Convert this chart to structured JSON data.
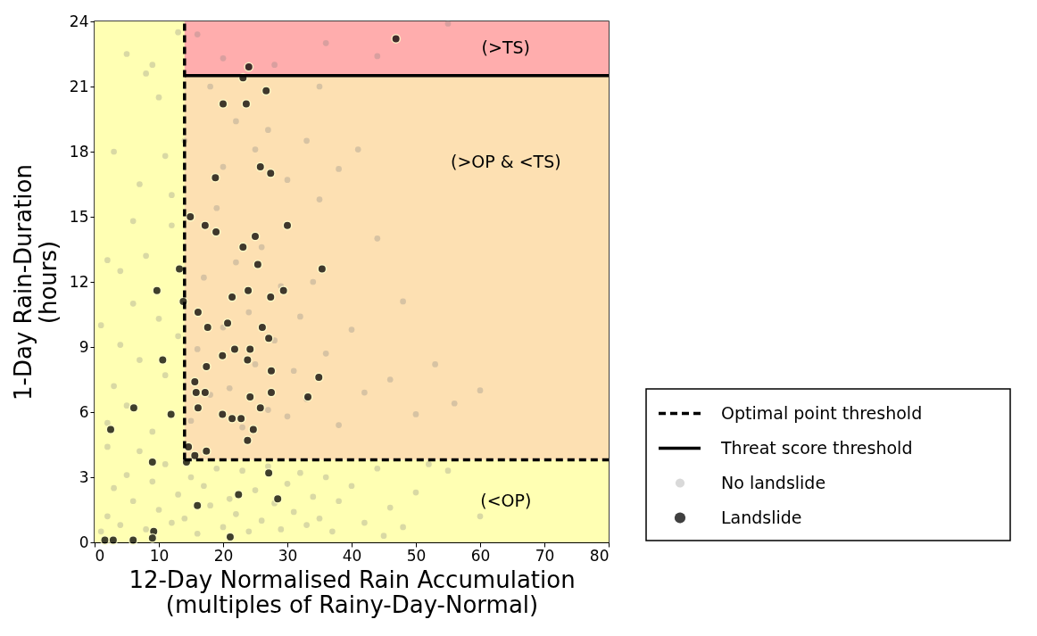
{
  "chart_data": {
    "type": "scatter",
    "xlabel": "12-Day Normalised Rain Accumulation\n(multiples of Rainy-Day-Normal)",
    "ylabel": "1-Day Rain-Duration\n(hours)",
    "xlim": [
      0,
      80
    ],
    "ylim": [
      0,
      24
    ],
    "xticks": [
      0,
      10,
      20,
      30,
      40,
      50,
      60,
      70,
      80
    ],
    "yticks": [
      0,
      3,
      6,
      9,
      12,
      15,
      18,
      21,
      24
    ],
    "grid": false,
    "legend": "right",
    "marker": "circle",
    "series": [
      {
        "name": "No landslide",
        "color": "#808080",
        "x": [
          1,
          2,
          3,
          4,
          5,
          6,
          7,
          8,
          9,
          10,
          11,
          12,
          13,
          14,
          15,
          16,
          17,
          18,
          19,
          20,
          21,
          22,
          23,
          24,
          25,
          26,
          27,
          28,
          29,
          30,
          31,
          32,
          33,
          34,
          35,
          36,
          37,
          38,
          40,
          42,
          44,
          46,
          48,
          50,
          55,
          60,
          52,
          45,
          2,
          3,
          4,
          5,
          6,
          7,
          8,
          9,
          10,
          11,
          12,
          13,
          4,
          2,
          15,
          16,
          17,
          18,
          19,
          20,
          21,
          22,
          23,
          24,
          25,
          26,
          27,
          28,
          29,
          30,
          31,
          32,
          33,
          34,
          36,
          38,
          40,
          42,
          44,
          46,
          48,
          50,
          53,
          56,
          60,
          35,
          30,
          25,
          20,
          22,
          27,
          33,
          38,
          41,
          35,
          18,
          10,
          8,
          5,
          13,
          9,
          3,
          7,
          11,
          16,
          20,
          36,
          44,
          55,
          28,
          6,
          1,
          2,
          14,
          12
        ],
        "values": [
          0.5,
          1.2,
          2.5,
          0.8,
          3.1,
          1.9,
          4.2,
          0.6,
          2.8,
          1.5,
          3.6,
          0.9,
          2.2,
          1.1,
          3.0,
          0.4,
          2.6,
          1.7,
          3.4,
          0.7,
          2.0,
          1.3,
          3.3,
          0.5,
          2.4,
          1.0,
          3.5,
          1.8,
          0.6,
          2.7,
          1.4,
          3.2,
          0.8,
          2.1,
          1.1,
          3.0,
          0.5,
          1.9,
          2.6,
          0.9,
          3.4,
          1.6,
          0.7,
          2.3,
          3.3,
          1.2,
          3.6,
          0.3,
          5.5,
          7.2,
          9.1,
          6.3,
          11.0,
          8.4,
          13.2,
          5.1,
          10.3,
          7.7,
          14.6,
          9.5,
          12.5,
          4.4,
          5.6,
          8.9,
          12.2,
          6.8,
          15.4,
          9.9,
          7.1,
          12.9,
          5.3,
          10.6,
          8.2,
          13.6,
          6.1,
          9.3,
          11.8,
          5.8,
          7.9,
          10.4,
          6.6,
          12.0,
          8.7,
          5.4,
          9.8,
          6.9,
          14.0,
          7.5,
          11.1,
          5.9,
          8.2,
          6.4,
          7.0,
          15.8,
          16.7,
          18.1,
          17.3,
          19.4,
          19.0,
          18.5,
          17.2,
          18.1,
          21.0,
          21.0,
          20.5,
          21.6,
          22.5,
          23.5,
          22.0,
          18.0,
          16.5,
          17.8,
          23.4,
          22.3,
          23.0,
          22.4,
          23.9,
          22.0,
          14.8,
          10.0,
          13.0,
          18.5,
          16.0
        ]
      },
      {
        "name": "Landslide",
        "color": "#000000",
        "x": [
          46.9,
          24,
          23.1,
          26.7,
          20,
          23.6,
          25.8,
          27.4,
          18.8,
          14.9,
          17.2,
          18.9,
          25,
          30,
          23.1,
          25.4,
          35.4,
          13.2,
          9.7,
          13.8,
          21.4,
          23.9,
          27.4,
          29.4,
          16.1,
          20.7,
          17.6,
          26.1,
          27.1,
          21.8,
          24.2,
          19.9,
          23.8,
          10.6,
          17.4,
          27.5,
          34.9,
          15.6,
          15.8,
          17.2,
          27.5,
          24.2,
          33.2,
          6.1,
          16.1,
          25.8,
          11.9,
          19.9,
          21.4,
          22.8,
          2.5,
          24.7,
          23.8,
          14.6,
          17.4,
          15.6,
          9.0,
          14.3,
          27.1,
          22.4,
          28.5,
          16,
          9.2,
          21.1,
          1.6,
          2.9,
          6,
          9
        ],
        "values": [
          23.2,
          21.9,
          21.4,
          20.8,
          20.2,
          20.2,
          17.3,
          17.0,
          16.8,
          15.0,
          14.6,
          14.3,
          14.1,
          14.6,
          13.6,
          12.8,
          12.6,
          12.6,
          11.6,
          11.1,
          11.3,
          11.6,
          11.3,
          11.6,
          10.6,
          10.1,
          9.9,
          9.9,
          9.4,
          8.9,
          8.9,
          8.6,
          8.4,
          8.4,
          8.1,
          7.9,
          7.6,
          7.4,
          6.9,
          6.9,
          6.9,
          6.7,
          6.7,
          6.2,
          6.2,
          6.2,
          5.9,
          5.9,
          5.7,
          5.7,
          5.2,
          5.2,
          4.7,
          4.4,
          4.2,
          4.0,
          3.7,
          3.7,
          3.2,
          2.2,
          2.0,
          1.7,
          0.5,
          0.25,
          0.1,
          0.1,
          0.1,
          0.2
        ]
      }
    ],
    "ref_lines": [
      {
        "axis": "y",
        "value": 3.8,
        "label": "Optimal point threshold",
        "line_style": "dashed",
        "color": "#000000"
      },
      {
        "axis": "x",
        "value": 14,
        "line_style": "dashed",
        "color": "#000000"
      },
      {
        "axis": "y",
        "value": 21.5,
        "label": "Threat score threshold",
        "line_style": "solid",
        "color": "#000000"
      }
    ],
    "bands": [
      {
        "axis": "y",
        "from": 0,
        "to": 3.8,
        "label": "(<OP)",
        "color": "#ffffb3"
      },
      {
        "axis": "y",
        "from": 3.8,
        "to": 21.5,
        "label": "(>OP & <TS)",
        "color": "#fde0b2"
      },
      {
        "axis": "y",
        "from": 21.5,
        "to": 24,
        "label": "(>TS)",
        "color": "#ffadad"
      },
      {
        "axis": "x",
        "from": 0,
        "to": 14,
        "color": "#ffffb3"
      }
    ]
  }
}
